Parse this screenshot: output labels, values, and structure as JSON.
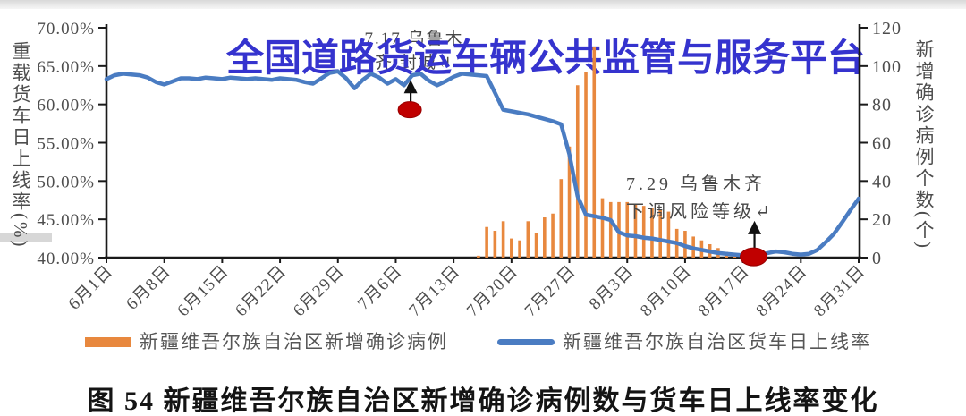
{
  "watermark": {
    "text": "全国道路货运车辆公共监管与服务平台",
    "color": "#3533ce"
  },
  "caption": {
    "text": "图 54 新疆维吾尔族自治区新增确诊病例数与货车日上线率变化"
  },
  "legend": {
    "items": [
      {
        "label": "新疆维吾尔族自治区新增确诊病例",
        "type": "bar",
        "color": "#e8883e"
      },
      {
        "label": "新疆维吾尔族自治区货车日上线率",
        "type": "line",
        "color": "#4a7cc2"
      }
    ]
  },
  "annotations": [
    {
      "name": "urumqi-lockdown",
      "line1": "7.17 乌鲁木",
      "line2": "齐 封城↵",
      "day": 36.8,
      "dot_value": 59.3,
      "arrow_tip_value": 63.2,
      "dot_color": "#c00000"
    },
    {
      "name": "urumqi-risk-downgrade",
      "line1": "7.29 乌鲁木齐",
      "line2": "下调风险等级↵",
      "day": 78.4,
      "dot_value": 40.1,
      "arrow_tip_value": 44.8,
      "dot_color": "#c00000"
    }
  ],
  "chart_data": {
    "type": "combo",
    "title": "",
    "x_start_date": "6月1日",
    "x_end_date": "8月31日",
    "days": 92,
    "x_tick_labels": [
      "6月1日",
      "6月8日",
      "6月15日",
      "6月22日",
      "6月29日",
      "7月6日",
      "7月13日",
      "7月20日",
      "7月27日",
      "8月3日",
      "8月10日",
      "8月17日",
      "8月24日",
      "8月31日"
    ],
    "x_tick_days": [
      0,
      7,
      14,
      21,
      28,
      35,
      42,
      49,
      56,
      63,
      70,
      77,
      84,
      91
    ],
    "y_left": {
      "title": "重载货车日上线率(%)",
      "min": 40,
      "max": 70,
      "tick_values": [
        70,
        65,
        60,
        55,
        50,
        45,
        40
      ],
      "tick_labels": [
        "70.00%",
        "65.00%",
        "60.00%",
        "55.00%",
        "50.00%",
        "45.00%",
        "40.00%"
      ]
    },
    "y_right": {
      "title": "新增确诊病例个数(个)",
      "min": 0,
      "max": 120,
      "tick_values": [
        120,
        100,
        80,
        60,
        40,
        20,
        0
      ],
      "tick_labels": [
        "120",
        "100",
        "80",
        "60",
        "40",
        "20",
        "0"
      ]
    },
    "grid": false,
    "legend_position": "bottom",
    "series": [
      {
        "name": "新疆维吾尔族自治区新增确诊病例",
        "type": "bar",
        "axis": "right",
        "color": "#e8883e",
        "points_day_value": [
          [
            45,
            1
          ],
          [
            46,
            16
          ],
          [
            47,
            14
          ],
          [
            48,
            19
          ],
          [
            49,
            10
          ],
          [
            50,
            9
          ],
          [
            51,
            19
          ],
          [
            52,
            13
          ],
          [
            53,
            21
          ],
          [
            54,
            23
          ],
          [
            55,
            41
          ],
          [
            56,
            58
          ],
          [
            57,
            90
          ],
          [
            58,
            97
          ],
          [
            59,
            110
          ],
          [
            60,
            31
          ],
          [
            61,
            29
          ],
          [
            62,
            29
          ],
          [
            63,
            29
          ],
          [
            64,
            28
          ],
          [
            65,
            27
          ],
          [
            66,
            26
          ],
          [
            67,
            25
          ],
          [
            68,
            24
          ],
          [
            69,
            15
          ],
          [
            70,
            14
          ],
          [
            71,
            11
          ],
          [
            72,
            9
          ],
          [
            73,
            7
          ],
          [
            74,
            5
          ],
          [
            75,
            3
          ],
          [
            76,
            1
          ]
        ]
      },
      {
        "name": "新疆维吾尔族自治区货车日上线率",
        "type": "line",
        "axis": "left",
        "color": "#4a7cc2",
        "values_daily": [
          63.3,
          63.8,
          64.0,
          63.9,
          63.8,
          63.5,
          62.9,
          62.6,
          63.0,
          63.4,
          63.4,
          63.3,
          63.5,
          63.4,
          63.3,
          63.5,
          63.4,
          63.3,
          63.4,
          63.3,
          63.2,
          63.4,
          63.3,
          63.2,
          62.9,
          62.7,
          63.4,
          64.1,
          64.3,
          63.4,
          62.1,
          63.2,
          64.0,
          63.5,
          62.7,
          63.3,
          62.5,
          63.8,
          64.0,
          63.1,
          62.5,
          63.0,
          63.6,
          64.0,
          63.9,
          63.8,
          63.7,
          61.5,
          59.3,
          59.1,
          58.9,
          58.7,
          58.4,
          58.1,
          57.8,
          57.4,
          53.5,
          48.0,
          45.6,
          45.4,
          45.2,
          44.9,
          43.3,
          42.9,
          42.8,
          42.6,
          42.5,
          42.3,
          42.1,
          41.9,
          41.5,
          41.2,
          41.0,
          40.8,
          40.6,
          40.5,
          40.4,
          40.3,
          40.3,
          40.3,
          40.6,
          40.8,
          40.7,
          40.5,
          40.4,
          40.5,
          41.0,
          42.0,
          43.1,
          44.6,
          46.2,
          47.7
        ]
      }
    ]
  }
}
